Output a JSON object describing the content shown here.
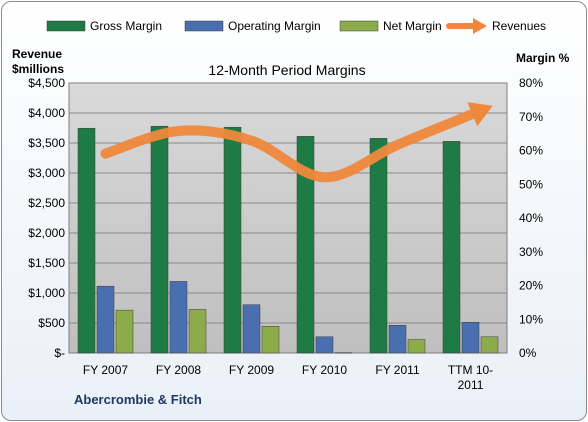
{
  "chart_data": {
    "type": "bar",
    "title": "12-Month Period Margins",
    "company": "Abercrombie & Fitch",
    "categories": [
      [
        "FY 2007"
      ],
      [
        "FY 2008"
      ],
      [
        "FY 2009"
      ],
      [
        "FY 2010"
      ],
      [
        "FY 2011"
      ],
      [
        "TTM 10-",
        "2011"
      ]
    ],
    "y_left": {
      "label": [
        "Revenue",
        "$millions"
      ],
      "range": [
        0,
        4500
      ],
      "ticks": [
        "$-",
        "$500",
        "$1,000",
        "$1,500",
        "$2,000",
        "$2,500",
        "$3,000",
        "$3,500",
        "$4,000",
        "$4,500"
      ]
    },
    "y_right": {
      "label": "Margin %",
      "range": [
        0,
        80
      ],
      "ticks": [
        "0%",
        "10%",
        "20%",
        "30%",
        "40%",
        "50%",
        "60%",
        "70%",
        "80%"
      ]
    },
    "series": [
      {
        "name": "Gross Margin",
        "type": "bar",
        "axis": "right",
        "color": "#1e7b45",
        "values": [
          66.6,
          67.2,
          66.9,
          64.2,
          63.6,
          62.7
        ]
      },
      {
        "name": "Operating Margin",
        "type": "bar",
        "axis": "right",
        "color": "#4a6fb0",
        "values": [
          19.8,
          21.2,
          14.3,
          4.8,
          8.2,
          9.1
        ]
      },
      {
        "name": "Net Margin",
        "type": "bar",
        "axis": "right",
        "color": "#8cac4c",
        "values": [
          12.7,
          12.9,
          7.9,
          0.1,
          4.0,
          4.8
        ]
      },
      {
        "name": "Revenues",
        "type": "line",
        "axis": "left",
        "color": "#f0883c",
        "values": [
          3323,
          3700,
          3540,
          2929,
          3469,
          3968
        ]
      }
    ],
    "grid": true,
    "legend": "top"
  }
}
